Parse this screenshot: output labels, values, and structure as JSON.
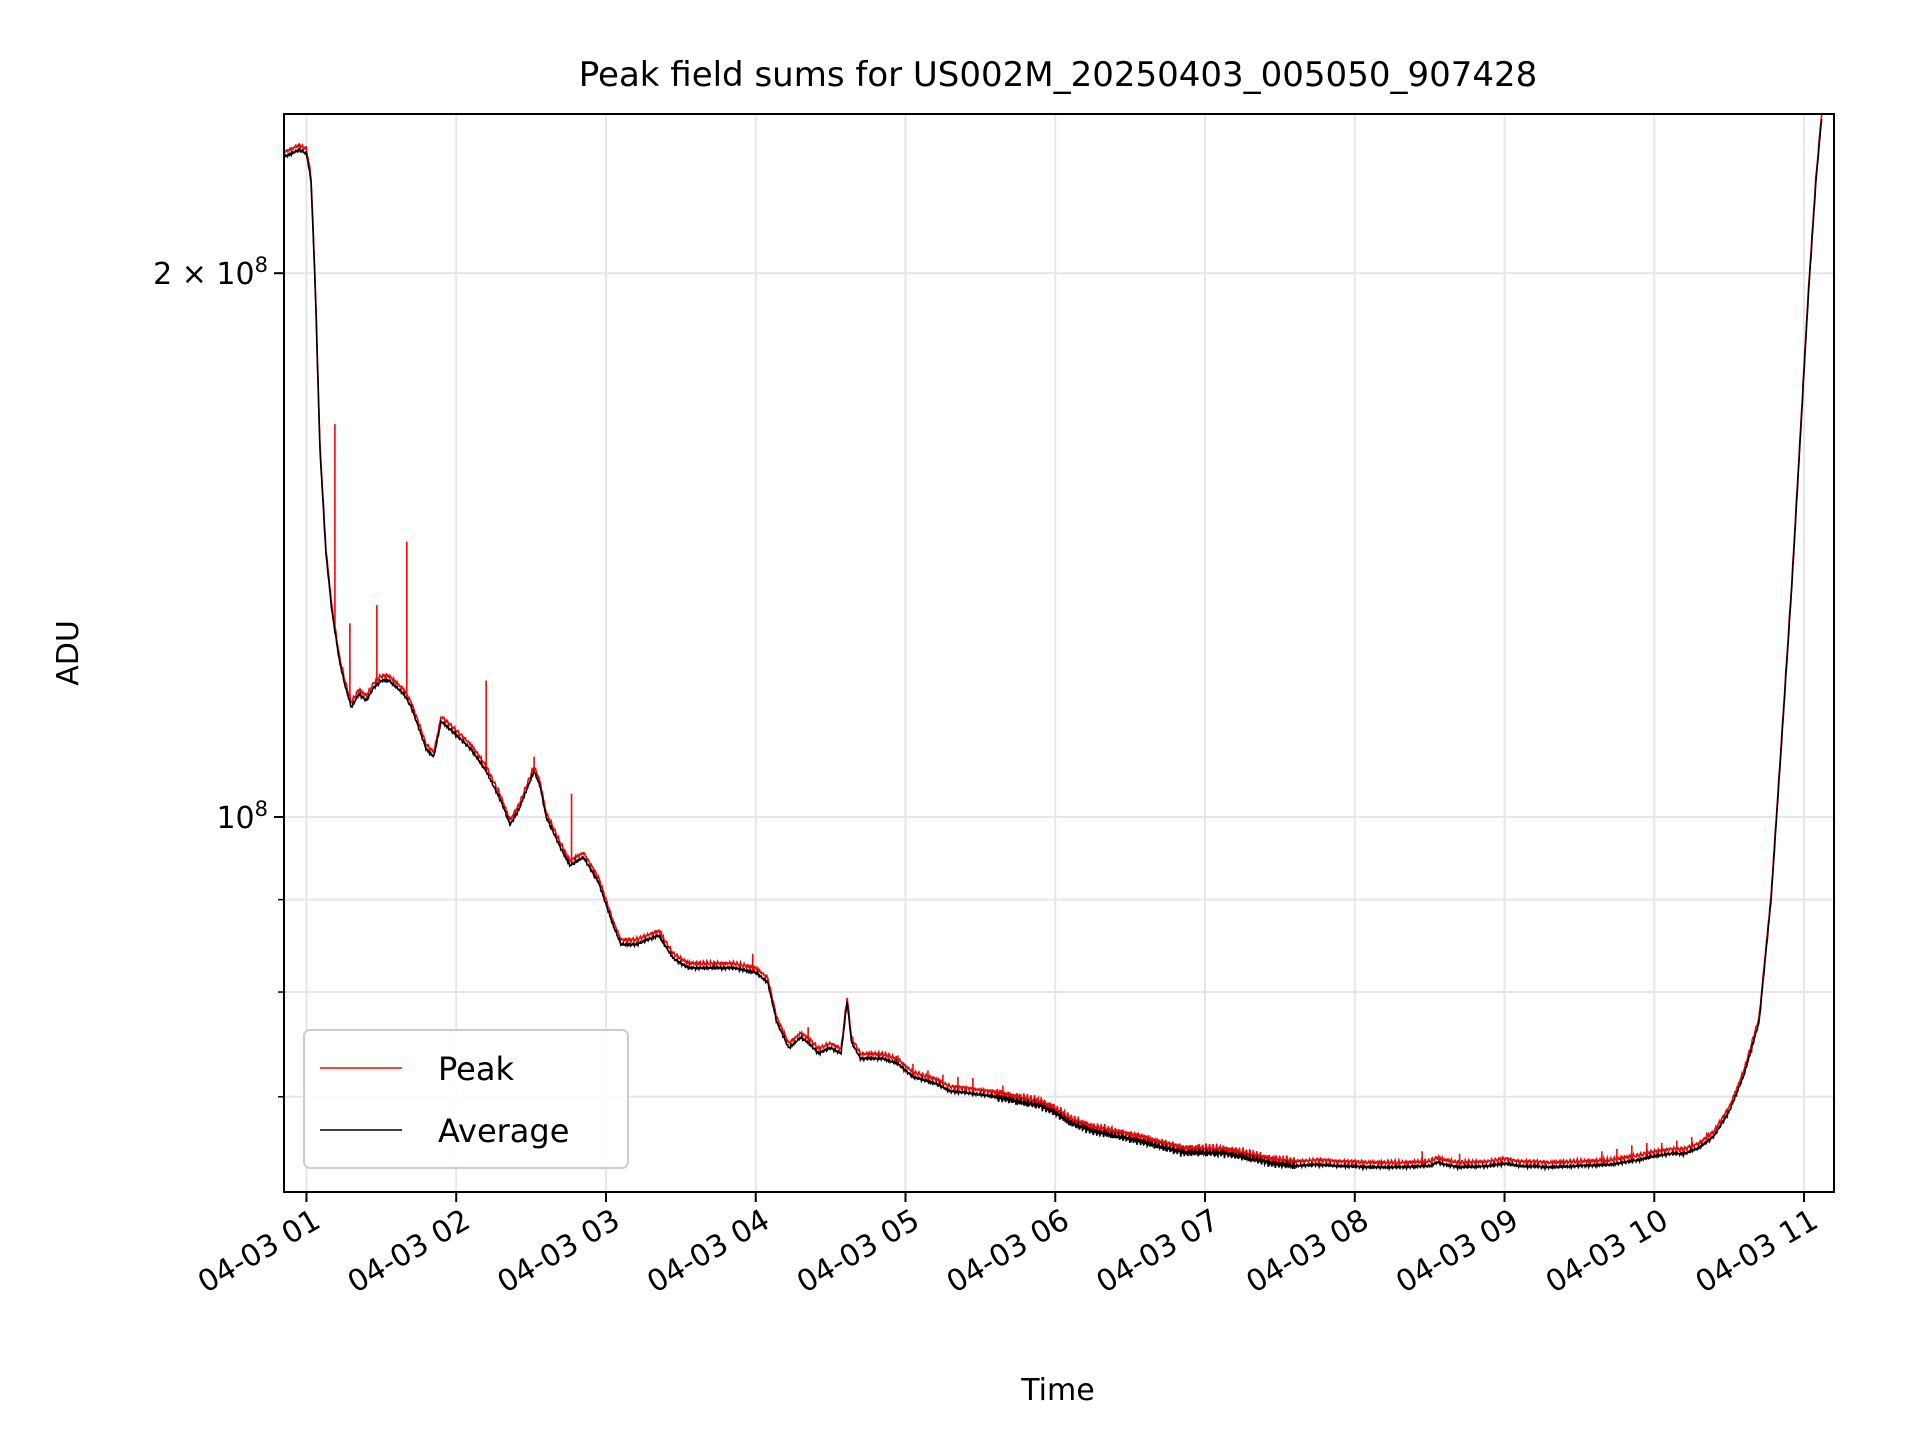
{
  "chart_data": {
    "type": "line",
    "title": "Peak field sums for US002M_20250403_005050_907428",
    "xlabel": "Time",
    "ylabel": "ADU",
    "yscale": "log",
    "grid": true,
    "legend_position": "lower-left",
    "xlim_hours": [
      0.85,
      11.2
    ],
    "ylim": [
      62000000,
      245000000
    ],
    "x_ticks": [
      {
        "hour": 1,
        "label": "04-03 01"
      },
      {
        "hour": 2,
        "label": "04-03 02"
      },
      {
        "hour": 3,
        "label": "04-03 03"
      },
      {
        "hour": 4,
        "label": "04-03 04"
      },
      {
        "hour": 5,
        "label": "04-03 05"
      },
      {
        "hour": 6,
        "label": "04-03 06"
      },
      {
        "hour": 7,
        "label": "04-03 07"
      },
      {
        "hour": 8,
        "label": "04-03 08"
      },
      {
        "hour": 9,
        "label": "04-03 09"
      },
      {
        "hour": 10,
        "label": "04-03 10"
      },
      {
        "hour": 11,
        "label": "04-03 11"
      }
    ],
    "y_major_ticks": [
      {
        "value": 100000000,
        "label_base": "10",
        "label_exp": "8",
        "label_coef": ""
      },
      {
        "value": 200000000,
        "label_base": "10",
        "label_exp": "8",
        "label_coef": "2 × "
      }
    ],
    "y_minor_ticks": [
      70000000,
      80000000,
      90000000
    ],
    "series": [
      {
        "name": "Average",
        "color": "#000000",
        "points": [
          [
            0.85,
            232000000
          ],
          [
            0.95,
            234000000
          ],
          [
            1.0,
            233000000
          ],
          [
            1.03,
            225000000
          ],
          [
            1.06,
            195000000
          ],
          [
            1.09,
            160000000
          ],
          [
            1.13,
            140000000
          ],
          [
            1.17,
            130000000
          ],
          [
            1.22,
            122000000
          ],
          [
            1.26,
            118000000
          ],
          [
            1.3,
            115000000
          ],
          [
            1.35,
            117000000
          ],
          [
            1.4,
            116000000
          ],
          [
            1.45,
            118000000
          ],
          [
            1.5,
            119000000
          ],
          [
            1.55,
            119000000
          ],
          [
            1.6,
            118000000
          ],
          [
            1.65,
            117000000
          ],
          [
            1.7,
            115000000
          ],
          [
            1.75,
            112000000
          ],
          [
            1.8,
            109000000
          ],
          [
            1.85,
            108000000
          ],
          [
            1.9,
            113000000
          ],
          [
            1.95,
            112000000
          ],
          [
            2.0,
            111000000
          ],
          [
            2.1,
            109000000
          ],
          [
            2.2,
            106000000
          ],
          [
            2.3,
            102000000
          ],
          [
            2.36,
            99000000
          ],
          [
            2.42,
            101000000
          ],
          [
            2.48,
            104000000
          ],
          [
            2.52,
            106000000
          ],
          [
            2.56,
            104000000
          ],
          [
            2.6,
            100000000
          ],
          [
            2.65,
            98000000
          ],
          [
            2.7,
            96000000
          ],
          [
            2.76,
            94000000
          ],
          [
            2.85,
            95000000
          ],
          [
            2.95,
            92000000
          ],
          [
            3.05,
            87000000
          ],
          [
            3.1,
            85000000
          ],
          [
            3.2,
            85000000
          ],
          [
            3.35,
            86000000
          ],
          [
            3.45,
            83500000
          ],
          [
            3.55,
            82500000
          ],
          [
            3.7,
            82500000
          ],
          [
            3.85,
            82500000
          ],
          [
            4.0,
            82000000
          ],
          [
            4.08,
            81000000
          ],
          [
            4.14,
            77000000
          ],
          [
            4.22,
            74500000
          ],
          [
            4.3,
            75500000
          ],
          [
            4.35,
            75000000
          ],
          [
            4.42,
            74000000
          ],
          [
            4.5,
            74500000
          ],
          [
            4.57,
            74000000
          ],
          [
            4.61,
            79000000
          ],
          [
            4.64,
            75000000
          ],
          [
            4.7,
            73500000
          ],
          [
            4.85,
            73500000
          ],
          [
            4.95,
            73000000
          ],
          [
            5.05,
            71800000
          ],
          [
            5.2,
            71200000
          ],
          [
            5.3,
            70500000
          ],
          [
            5.45,
            70300000
          ],
          [
            5.6,
            70000000
          ],
          [
            5.75,
            69600000
          ],
          [
            5.9,
            69200000
          ],
          [
            6.0,
            68600000
          ],
          [
            6.1,
            67700000
          ],
          [
            6.25,
            67000000
          ],
          [
            6.4,
            66600000
          ],
          [
            6.55,
            66200000
          ],
          [
            6.7,
            65700000
          ],
          [
            6.85,
            65200000
          ],
          [
            7.0,
            65200000
          ],
          [
            7.15,
            65100000
          ],
          [
            7.3,
            64700000
          ],
          [
            7.45,
            64300000
          ],
          [
            7.6,
            64100000
          ],
          [
            7.75,
            64200000
          ],
          [
            7.9,
            64100000
          ],
          [
            8.1,
            64000000
          ],
          [
            8.3,
            64000000
          ],
          [
            8.5,
            64100000
          ],
          [
            8.55,
            64400000
          ],
          [
            8.6,
            64200000
          ],
          [
            8.7,
            64000000
          ],
          [
            8.9,
            64100000
          ],
          [
            9.0,
            64300000
          ],
          [
            9.1,
            64100000
          ],
          [
            9.3,
            64000000
          ],
          [
            9.5,
            64100000
          ],
          [
            9.7,
            64200000
          ],
          [
            9.9,
            64600000
          ],
          [
            10.0,
            64900000
          ],
          [
            10.1,
            65100000
          ],
          [
            10.2,
            65100000
          ],
          [
            10.3,
            65600000
          ],
          [
            10.4,
            66600000
          ],
          [
            10.5,
            68700000
          ],
          [
            10.6,
            72000000
          ],
          [
            10.7,
            77000000
          ],
          [
            10.78,
            90000000
          ],
          [
            10.85,
            110000000
          ],
          [
            10.92,
            135000000
          ],
          [
            10.98,
            165000000
          ],
          [
            11.03,
            195000000
          ],
          [
            11.08,
            225000000
          ],
          [
            11.12,
            245000000
          ]
        ]
      },
      {
        "name": "Peak",
        "color": "#ff0000",
        "spikes": [
          [
            1.19,
            165000000
          ],
          [
            1.29,
            128000000
          ],
          [
            1.47,
            131000000
          ],
          [
            1.67,
            142000000
          ],
          [
            2.2,
            119000000
          ],
          [
            2.52,
            108000000
          ],
          [
            2.77,
            103000000
          ],
          [
            3.37,
            86500000
          ],
          [
            3.98,
            84000000
          ],
          [
            4.35,
            76500000
          ],
          [
            4.75,
            74000000
          ],
          [
            4.85,
            74000000
          ],
          [
            4.95,
            73800000
          ],
          [
            5.05,
            73000000
          ],
          [
            5.15,
            72400000
          ],
          [
            5.25,
            72000000
          ],
          [
            5.35,
            71800000
          ],
          [
            5.45,
            71700000
          ],
          [
            5.65,
            71000000
          ],
          [
            8.45,
            65300000
          ],
          [
            8.7,
            65100000
          ],
          [
            9.65,
            65300000
          ],
          [
            9.75,
            65500000
          ],
          [
            9.85,
            65800000
          ],
          [
            9.95,
            66000000
          ],
          [
            10.05,
            66000000
          ],
          [
            10.15,
            66200000
          ],
          [
            10.25,
            66500000
          ],
          [
            10.35,
            66900000
          ],
          [
            10.45,
            68000000
          ],
          [
            10.55,
            70000000
          ],
          [
            10.65,
            74000000
          ]
        ]
      }
    ]
  }
}
